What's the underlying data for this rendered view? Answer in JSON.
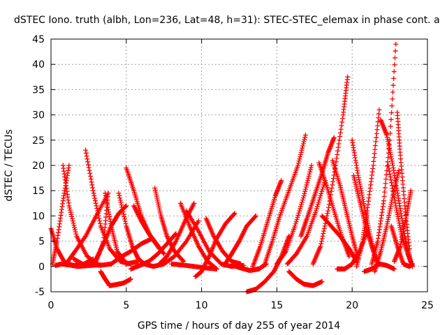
{
  "chart_data": {
    "type": "scatter",
    "title": "dSTEC Iono. truth (albh, Lon=236, Lat=48, h=31): STEC-STEC_elemax in phase cont. a",
    "xlabel": "GPS time / hours of day 255 of year 2014",
    "ylabel": "dSTEC  / TECUs",
    "xlim": [
      0,
      25
    ],
    "ylim": [
      -5,
      45
    ],
    "xticks": [
      0,
      5,
      10,
      15,
      20,
      25
    ],
    "yticks": [
      -5,
      0,
      5,
      10,
      15,
      20,
      25,
      30,
      35,
      40,
      45
    ],
    "grid": true,
    "marker": "plus",
    "color": "#ff0000",
    "arcs": [
      {
        "x": [
          0.0,
          0.4,
          0.9,
          1.5,
          2.2,
          2.8
        ],
        "y": [
          7.5,
          3.5,
          0.8,
          0.2,
          0.5,
          1.5
        ]
      },
      {
        "x": [
          0.1,
          0.4,
          0.8,
          1.2
        ],
        "y": [
          0.5,
          5.0,
          13.0,
          20.0
        ]
      },
      {
        "x": [
          0.3,
          0.7,
          1.2,
          1.8,
          2.6,
          3.3
        ],
        "y": [
          0.2,
          0.5,
          0.3,
          0.0,
          0.2,
          0.3
        ]
      },
      {
        "x": [
          0.8,
          1.2,
          1.7,
          2.4,
          3.2,
          4.0
        ],
        "y": [
          20.0,
          12.0,
          6.0,
          2.0,
          0.2,
          0.5
        ]
      },
      {
        "x": [
          1.0,
          1.6,
          2.3,
          3.0,
          3.8
        ],
        "y": [
          0.5,
          3.0,
          6.0,
          10.0,
          14.5
        ]
      },
      {
        "x": [
          2.3,
          2.8,
          3.3,
          3.9,
          4.6,
          5.3
        ],
        "y": [
          23.0,
          15.0,
          8.0,
          3.5,
          1.0,
          0.5
        ]
      },
      {
        "x": [
          1.5,
          2.2,
          3.0,
          3.5,
          3.8
        ],
        "y": [
          1.5,
          0.3,
          1.0,
          5.0,
          14.5
        ]
      },
      {
        "x": [
          2.6,
          3.0,
          3.5,
          4.0,
          4.5,
          5.0
        ],
        "y": [
          0.2,
          1.5,
          4.5,
          8.0,
          10.5,
          12.0
        ]
      },
      {
        "x": [
          3.6,
          4.0,
          4.4,
          5.0,
          5.8
        ],
        "y": [
          14.5,
          8.0,
          3.0,
          0.5,
          1.0
        ]
      },
      {
        "x": [
          3.3,
          3.6,
          3.9,
          4.3,
          4.8,
          5.3
        ],
        "y": [
          -1.0,
          -2.5,
          -3.8,
          -3.6,
          -3.3,
          -2.5
        ]
      },
      {
        "x": [
          4.5,
          5.0,
          5.4,
          5.8,
          6.2
        ],
        "y": [
          14.5,
          8.0,
          4.0,
          1.5,
          0.5
        ]
      },
      {
        "x": [
          5.0,
          5.5,
          6.0,
          6.6,
          7.2
        ],
        "y": [
          19.5,
          15.0,
          10.0,
          6.0,
          3.5
        ]
      },
      {
        "x": [
          4.0,
          4.6,
          5.3,
          6.0,
          6.7
        ],
        "y": [
          0.5,
          1.8,
          3.0,
          4.5,
          5.5
        ]
      },
      {
        "x": [
          5.5,
          6.0,
          6.5,
          7.0,
          7.5
        ],
        "y": [
          12.0,
          9.0,
          6.5,
          4.5,
          2.5
        ]
      },
      {
        "x": [
          5.3,
          5.9,
          6.5,
          7.1,
          7.7,
          8.3
        ],
        "y": [
          -0.5,
          0.2,
          1.0,
          2.5,
          4.5,
          6.5
        ]
      },
      {
        "x": [
          6.9,
          7.3,
          7.7,
          8.2,
          8.8
        ],
        "y": [
          15.5,
          10.0,
          6.0,
          3.0,
          1.0
        ]
      },
      {
        "x": [
          6.2,
          6.8,
          7.5,
          8.2,
          9.0,
          9.8
        ],
        "y": [
          0.5,
          0.0,
          0.5,
          2.0,
          5.0,
          9.0
        ]
      },
      {
        "x": [
          7.2,
          7.7,
          8.3,
          8.9,
          9.5
        ],
        "y": [
          0.5,
          2.0,
          5.0,
          9.0,
          12.5
        ]
      },
      {
        "x": [
          8.0,
          8.7,
          9.5,
          10.3,
          11.0
        ],
        "y": [
          0.5,
          0.3,
          0.0,
          -0.3,
          -0.5
        ]
      },
      {
        "x": [
          8.6,
          9.2,
          9.8,
          10.4,
          11.0
        ],
        "y": [
          12.5,
          8.0,
          4.0,
          1.0,
          -0.5
        ]
      },
      {
        "x": [
          9.6,
          10.0,
          10.5,
          11.0,
          11.6,
          12.2
        ],
        "y": [
          -2.0,
          -1.0,
          2.0,
          5.5,
          8.5,
          10.5
        ]
      },
      {
        "x": [
          9.0,
          9.8,
          10.5,
          11.3,
          12.0,
          12.8
        ],
        "y": [
          11.0,
          7.0,
          3.0,
          0.5,
          0.0,
          0.2
        ]
      },
      {
        "x": [
          10.3,
          10.8,
          11.4,
          12.0,
          12.6
        ],
        "y": [
          9.5,
          6.0,
          3.0,
          1.0,
          0.5
        ]
      },
      {
        "x": [
          11.5,
          12.0,
          12.5,
          13.0,
          13.6
        ],
        "y": [
          0.2,
          2.5,
          5.0,
          8.0,
          10.0
        ]
      },
      {
        "x": [
          12.0,
          12.6,
          13.2,
          13.8,
          14.3
        ],
        "y": [
          0.3,
          -0.3,
          -0.8,
          -0.5,
          0.5
        ]
      },
      {
        "x": [
          13.0,
          13.6,
          14.2,
          14.8,
          15.3,
          15.8
        ],
        "y": [
          -5.0,
          -4.5,
          -3.0,
          -1.0,
          2.0,
          6.0
        ]
      },
      {
        "x": [
          13.4,
          13.9,
          14.4,
          14.9,
          15.3
        ],
        "y": [
          0.0,
          4.0,
          9.0,
          14.0,
          17.0
        ]
      },
      {
        "x": [
          14.2,
          14.7,
          15.2,
          15.8,
          16.4,
          16.9
        ],
        "y": [
          0.5,
          5.0,
          10.0,
          15.0,
          20.0,
          26.0
        ]
      },
      {
        "x": [
          15.0,
          15.6,
          16.2,
          16.8,
          17.3
        ],
        "y": [
          0.5,
          3.0,
          8.0,
          14.0,
          20.0
        ]
      },
      {
        "x": [
          15.7,
          16.3,
          17.0,
          17.6,
          18.2
        ],
        "y": [
          0.5,
          2.5,
          6.0,
          11.0,
          17.0
        ]
      },
      {
        "x": [
          15.8,
          16.3,
          16.8,
          17.4,
          18.0
        ],
        "y": [
          -1.0,
          -2.5,
          -3.5,
          -3.8,
          -3.0
        ]
      },
      {
        "x": [
          16.6,
          17.0,
          17.5,
          18.0,
          18.4,
          18.8
        ],
        "y": [
          6.0,
          9.5,
          14.0,
          18.5,
          22.5,
          25.5
        ]
      },
      {
        "x": [
          17.4,
          17.9,
          18.4,
          18.9,
          19.4,
          19.7
        ],
        "y": [
          0.5,
          4.0,
          11.0,
          20.0,
          30.0,
          37.5
        ]
      },
      {
        "x": [
          17.8,
          18.3,
          18.8,
          19.3,
          19.8
        ],
        "y": [
          20.5,
          16.0,
          11.0,
          6.0,
          2.0
        ]
      },
      {
        "x": [
          18.7,
          19.2,
          19.6,
          20.0,
          20.4
        ],
        "y": [
          21.0,
          16.0,
          11.0,
          6.0,
          1.5
        ]
      },
      {
        "x": [
          18.0,
          18.6,
          19.2,
          19.8,
          20.3
        ],
        "y": [
          10.0,
          8.0,
          6.0,
          3.5,
          1.0
        ]
      },
      {
        "x": [
          19.0,
          19.5,
          20.0,
          20.5,
          21.0
        ],
        "y": [
          -0.5,
          -0.5,
          0.5,
          3.0,
          7.0
        ]
      },
      {
        "x": [
          20.0,
          20.4,
          20.8,
          21.2,
          21.6
        ],
        "y": [
          25.0,
          18.0,
          12.0,
          6.0,
          1.0
        ]
      },
      {
        "x": [
          20.1,
          20.5,
          20.9,
          21.3,
          21.7
        ],
        "y": [
          18.0,
          13.0,
          8.0,
          4.0,
          0.5
        ]
      },
      {
        "x": [
          20.3,
          20.7,
          21.0,
          21.4,
          21.8
        ],
        "y": [
          0.0,
          5.0,
          11.0,
          20.0,
          31.0
        ]
      },
      {
        "x": [
          21.3,
          21.7,
          22.1,
          22.5,
          22.9
        ],
        "y": [
          0.5,
          5.0,
          13.0,
          25.0,
          44.0
        ]
      },
      {
        "x": [
          21.5,
          21.9,
          22.3,
          22.7,
          23.1
        ],
        "y": [
          -1.0,
          3.0,
          8.0,
          14.0,
          19.0
        ]
      },
      {
        "x": [
          20.8,
          21.3,
          21.8,
          22.3,
          22.8
        ],
        "y": [
          -1.0,
          -0.5,
          0.5,
          0.2,
          -0.5
        ]
      },
      {
        "x": [
          21.9,
          22.3,
          22.7,
          23.1,
          23.5,
          23.9
        ],
        "y": [
          29.0,
          26.0,
          20.0,
          13.0,
          6.0,
          1.0
        ]
      },
      {
        "x": [
          22.4,
          22.9,
          23.3,
          23.7,
          24.0
        ],
        "y": [
          20.0,
          12.0,
          6.0,
          2.5,
          0.0
        ]
      },
      {
        "x": [
          23.0,
          23.2,
          23.5,
          23.8
        ],
        "y": [
          30.5,
          22.0,
          12.0,
          3.5
        ]
      },
      {
        "x": [
          22.8,
          23.2,
          23.6,
          23.9
        ],
        "y": [
          1.0,
          4.0,
          10.0,
          15.0
        ]
      },
      {
        "x": [
          22.6,
          23.0,
          23.4,
          23.8,
          24.0
        ],
        "y": [
          8.0,
          4.0,
          0.5,
          0.0,
          0.5
        ]
      }
    ]
  }
}
